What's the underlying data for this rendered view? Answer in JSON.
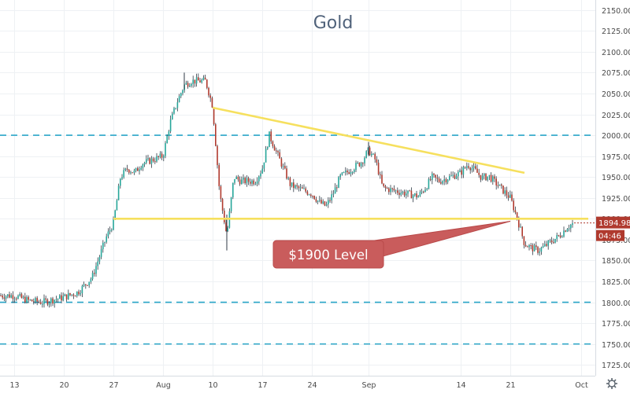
{
  "chart_data": {
    "type": "candlestick",
    "title": "Gold",
    "ylim": [
      1712,
      2162
    ],
    "y_ticks": [
      1725,
      1750,
      1775,
      1800,
      1825,
      1850,
      1875,
      1900,
      1925,
      1950,
      1975,
      2000,
      2025,
      2050,
      2075,
      2100,
      2125,
      2150
    ],
    "y_tick_labels": [
      "1725.00",
      "1750.00",
      "1775.00",
      "1800.00",
      "1825.00",
      "1850.00",
      "1875.00",
      "1900.00",
      "1925.00",
      "1950.00",
      "1975.00",
      "2000.00",
      "2025.00",
      "2050.00",
      "2075.00",
      "2100.00",
      "2125.00",
      "2150.00"
    ],
    "x_range": [
      "2020-07-11",
      "2020-10-03"
    ],
    "x_ticks": [
      {
        "date": "2020-07-13",
        "label": "13"
      },
      {
        "date": "2020-07-20",
        "label": "20"
      },
      {
        "date": "2020-07-27",
        "label": "27"
      },
      {
        "date": "2020-08-03",
        "label": "Aug"
      },
      {
        "date": "2020-08-10",
        "label": "10"
      },
      {
        "date": "2020-08-17",
        "label": "17"
      },
      {
        "date": "2020-08-24",
        "label": "24"
      },
      {
        "date": "2020-09-01",
        "label": "Sep"
      },
      {
        "date": "2020-09-14",
        "label": "14"
      },
      {
        "date": "2020-09-21",
        "label": "21"
      },
      {
        "date": "2020-10-01",
        "label": "Oct"
      }
    ],
    "price_path": [
      [
        "2020-07-11",
        1808
      ],
      [
        "2020-07-13",
        1808
      ],
      [
        "2020-07-15",
        1802
      ],
      [
        "2020-07-17",
        1800
      ],
      [
        "2020-07-20",
        1806
      ],
      [
        "2020-07-22",
        1812
      ],
      [
        "2020-07-24",
        1830
      ],
      [
        "2020-07-26",
        1878
      ],
      [
        "2020-07-27",
        1895
      ],
      [
        "2020-07-28",
        1950
      ],
      [
        "2020-07-29",
        1960
      ],
      [
        "2020-07-30",
        1955
      ],
      [
        "2020-07-31",
        1966
      ],
      [
        "2020-08-03",
        1975
      ],
      [
        "2020-08-04",
        2015
      ],
      [
        "2020-08-05",
        2040
      ],
      [
        "2020-08-06",
        2060
      ],
      [
        "2020-08-07",
        2065
      ],
      [
        "2020-08-09",
        2065
      ],
      [
        "2020-08-10",
        2035
      ],
      [
        "2020-08-11",
        1930
      ],
      [
        "2020-08-12",
        1880
      ],
      [
        "2020-08-13",
        1950
      ],
      [
        "2020-08-14",
        1945
      ],
      [
        "2020-08-16",
        1945
      ],
      [
        "2020-08-17",
        1960
      ],
      [
        "2020-08-18",
        2000
      ],
      [
        "2020-08-19",
        1980
      ],
      [
        "2020-08-20",
        1960
      ],
      [
        "2020-08-21",
        1940
      ],
      [
        "2020-08-24",
        1930
      ],
      [
        "2020-08-25",
        1920
      ],
      [
        "2020-08-26",
        1915
      ],
      [
        "2020-08-27",
        1930
      ],
      [
        "2020-08-28",
        1950
      ],
      [
        "2020-08-31",
        1968
      ],
      [
        "2020-09-01",
        1982
      ],
      [
        "2020-09-02",
        1970
      ],
      [
        "2020-09-03",
        1937
      ],
      [
        "2020-09-04",
        1935
      ],
      [
        "2020-09-08",
        1927
      ],
      [
        "2020-09-09",
        1937
      ],
      [
        "2020-09-10",
        1950
      ],
      [
        "2020-09-11",
        1945
      ],
      [
        "2020-09-14",
        1955
      ],
      [
        "2020-09-15",
        1965
      ],
      [
        "2020-09-16",
        1958
      ],
      [
        "2020-09-17",
        1949
      ],
      [
        "2020-09-18",
        1951
      ],
      [
        "2020-09-21",
        1925
      ],
      [
        "2020-09-22",
        1900
      ],
      [
        "2020-09-23",
        1870
      ],
      [
        "2020-09-24",
        1865
      ],
      [
        "2020-09-25",
        1862
      ],
      [
        "2020-09-28",
        1880
      ],
      [
        "2020-09-29",
        1890
      ],
      [
        "2020-09-30",
        1894.98
      ]
    ],
    "annotations": {
      "support_level": {
        "value": 1900,
        "from": "2020-07-27",
        "to": "2020-10-02",
        "color": "#f6e05e"
      },
      "resistance_trendline": {
        "from": [
          "2020-08-10",
          2033
        ],
        "to": [
          "2020-09-23",
          1955
        ],
        "color": "#f6e05e"
      },
      "dashed_levels": [
        2000,
        1800,
        1750
      ],
      "dashed_color": "#2ba7c8",
      "callout_text": "$1900 Level",
      "callout_points_to": [
        "2020-09-21",
        1897
      ]
    },
    "last_price": {
      "label": "1894.98",
      "value": 1894.98,
      "countdown": "04:46"
    },
    "colors": {
      "up": "#26a69a",
      "down": "#b03a2e",
      "wick": "#2f3a45",
      "callout_fill": "#c95c5c"
    },
    "grid": true
  },
  "settings_icon": "gear-icon"
}
